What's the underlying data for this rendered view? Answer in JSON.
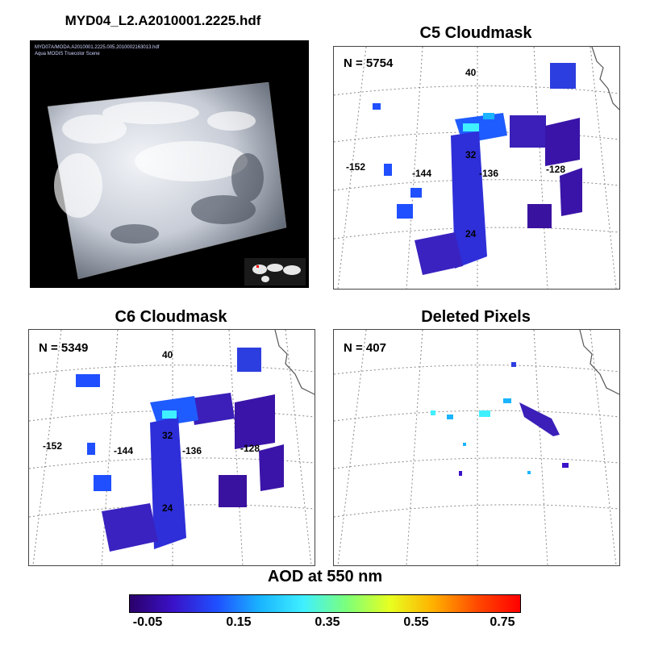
{
  "titles": {
    "file": "MYD04_L2.A2010001.2225.hdf",
    "c5": "C5 Cloudmask",
    "c6": "C6 Cloudmask",
    "deleted": "Deleted Pixels"
  },
  "thumbnail": {
    "line1": "MYD07A/MODA.A2010001.2225.005.2010002163013.hdf",
    "line2": "Aqua MODIS Truecolor Scene"
  },
  "panels": {
    "c5": {
      "count": "N = 5754"
    },
    "c6": {
      "count": "N = 5349"
    },
    "deleted": {
      "count": "N = 407"
    }
  },
  "map_labels": {
    "lat40": "40",
    "lat32": "32",
    "lat24": "24",
    "lon152": "-152",
    "lon144": "-144",
    "lon136": "-136",
    "lon128": "-128"
  },
  "colorbar": {
    "title": "AOD at 550 nm",
    "ticks": [
      "-0.05",
      "0.15",
      "0.35",
      "0.55",
      "0.75"
    ],
    "colors": [
      "#2a006a",
      "#3a12c8",
      "#1f4fff",
      "#1ab4ff",
      "#3ff0ff",
      "#7dff7a",
      "#e8ff20",
      "#ffb000",
      "#ff4a00",
      "#ff0000"
    ]
  }
}
